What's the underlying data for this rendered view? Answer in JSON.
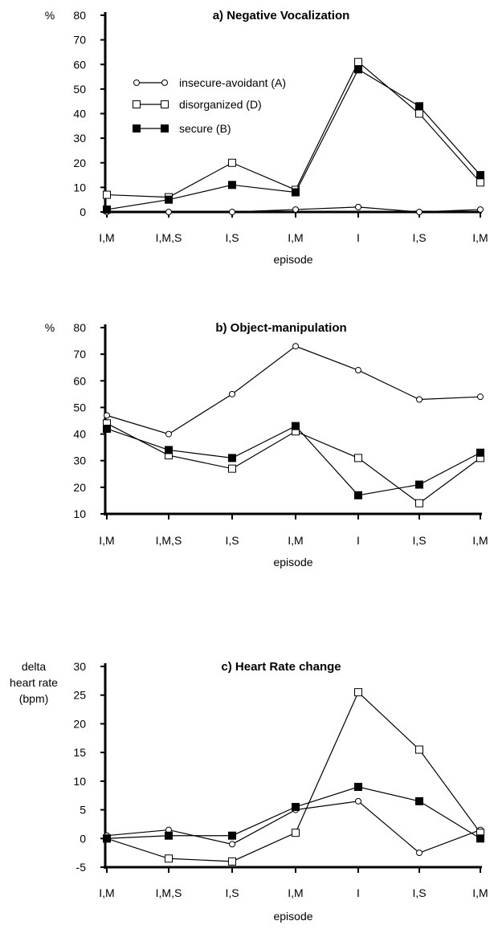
{
  "chart_data": [
    {
      "type": "line",
      "title": "a) Negative Vocalization",
      "ylabel": "%",
      "xlabel": "episode",
      "categories": [
        "I,M",
        "I,M,S",
        "I,S",
        "I,M",
        "I",
        "I,S",
        "I,M"
      ],
      "ylim": [
        0,
        80
      ],
      "yticks": [
        0,
        10,
        20,
        30,
        40,
        50,
        60,
        70,
        80
      ],
      "legend": "upper-left",
      "series": [
        {
          "name": "insecure-avoidant (A)",
          "marker": "open-circle",
          "values": [
            0,
            0,
            0,
            1,
            2,
            0,
            1
          ]
        },
        {
          "name": "disorganized (D)",
          "marker": "open-square",
          "values": [
            7,
            6,
            20,
            9,
            61,
            40,
            12
          ]
        },
        {
          "name": "secure (B)",
          "marker": "filled-square",
          "values": [
            1,
            5,
            11,
            8,
            58,
            43,
            15
          ]
        }
      ]
    },
    {
      "type": "line",
      "title": "b) Object-manipulation",
      "ylabel": "%",
      "xlabel": "episode",
      "categories": [
        "I,M",
        "I,M,S",
        "I,S",
        "I,M",
        "I",
        "I,S",
        "I,M"
      ],
      "ylim": [
        10,
        80
      ],
      "yticks": [
        10,
        20,
        30,
        40,
        50,
        60,
        70,
        80
      ],
      "series": [
        {
          "name": "insecure-avoidant (A)",
          "marker": "open-circle",
          "values": [
            47,
            40,
            55,
            73,
            64,
            53,
            54
          ]
        },
        {
          "name": "disorganized (D)",
          "marker": "open-square",
          "values": [
            44,
            32,
            27,
            41,
            31,
            14,
            31
          ]
        },
        {
          "name": "secure (B)",
          "marker": "filled-square",
          "values": [
            42,
            34,
            31,
            43,
            17,
            21,
            33
          ]
        }
      ]
    },
    {
      "type": "line",
      "title": "c) Heart Rate change",
      "ylabel": "delta heart rate (bpm)",
      "ylabel_lines": [
        "delta",
        "heart rate",
        "(bpm)"
      ],
      "xlabel": "episode",
      "categories": [
        "I,M",
        "I,M,S",
        "I,S",
        "I,M",
        "I",
        "I,S",
        "I,M"
      ],
      "ylim": [
        -5,
        30
      ],
      "yticks": [
        -5,
        0,
        5,
        10,
        15,
        20,
        25,
        30
      ],
      "series": [
        {
          "name": "insecure-avoidant (A)",
          "marker": "open-circle",
          "values": [
            0.5,
            1.5,
            -1,
            5,
            6.5,
            -2.5,
            1.5
          ]
        },
        {
          "name": "disorganized (D)",
          "marker": "open-square",
          "values": [
            0,
            -3.5,
            -4,
            1,
            25.5,
            15.5,
            1
          ]
        },
        {
          "name": "secure (B)",
          "marker": "filled-square",
          "values": [
            0,
            0.5,
            0.5,
            5.5,
            9,
            6.5,
            0
          ]
        }
      ]
    }
  ]
}
